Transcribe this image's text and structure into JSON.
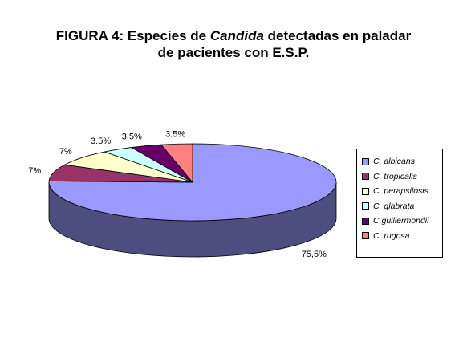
{
  "title": {
    "line1_pre": "FIGURA 4: Especies de ",
    "line1_italic": "Candida",
    "line1_post": " detectadas en paladar",
    "line2": "de pacientes con E.S.P."
  },
  "chart_data": {
    "type": "pie",
    "style": "3d",
    "categories": [
      "C. albicans",
      "C. tropicalis",
      "C. perapsilosis",
      "C. glabrata",
      "C.guillermondii",
      "C. rugosa"
    ],
    "values": [
      75.5,
      7,
      7,
      3.5,
      3.5,
      3.5
    ],
    "data_labels": [
      "75,5%",
      "7%",
      "7%",
      "3.5%",
      "3,5%",
      "3.5%"
    ],
    "colors": [
      "#9999ff",
      "#993366",
      "#ffffcc",
      "#ccffff",
      "#660066",
      "#ff8080"
    ],
    "legend_position": "right"
  }
}
